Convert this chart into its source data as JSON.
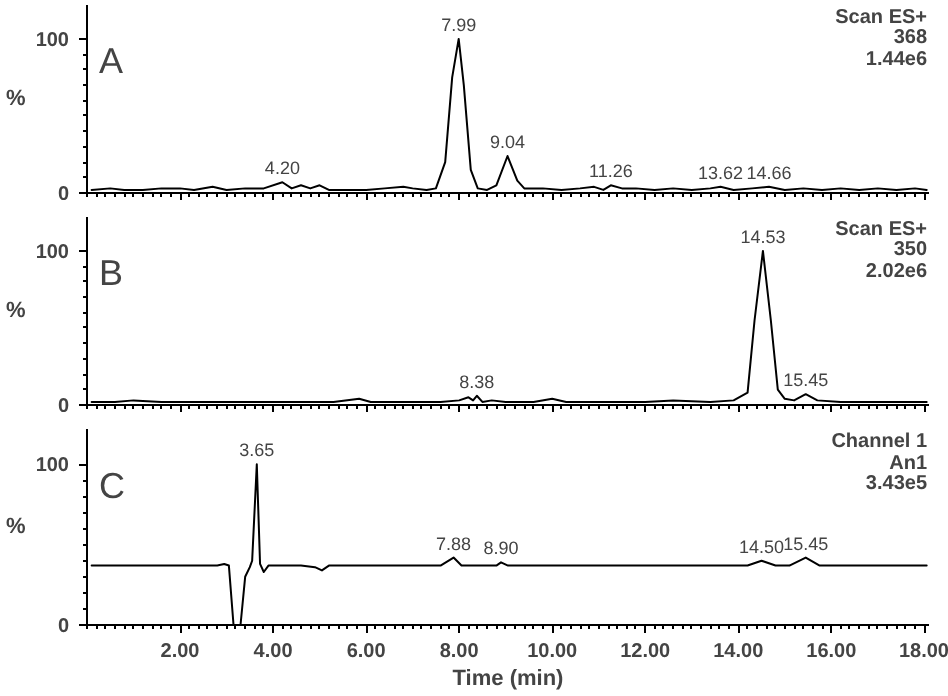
{
  "chart_data": [
    {
      "type": "line",
      "title": "A",
      "ylabel": "%",
      "xlim": [
        0,
        18.1
      ],
      "ylim": [
        0,
        122
      ],
      "yticks": [
        0,
        100
      ],
      "tick_labels": "y",
      "xticks": [
        {
          "value": 2,
          "label": null
        },
        {
          "value": 4,
          "label": null
        },
        {
          "value": 6,
          "label": null
        },
        {
          "value": 8,
          "label": null
        },
        {
          "value": 10,
          "label": null
        },
        {
          "value": 12,
          "label": null
        },
        {
          "value": 14,
          "label": null
        },
        {
          "value": 16,
          "label": null
        },
        {
          "value": 18,
          "label": null
        }
      ],
      "series": [
        {
          "color": "#000000",
          "x": [
            0.1,
            0.5,
            0.8,
            1.2,
            1.6,
            2.0,
            2.3,
            2.7,
            3.0,
            3.4,
            3.8,
            4.2,
            4.4,
            4.6,
            4.8,
            5.0,
            5.2,
            5.6,
            6.0,
            6.4,
            6.8,
            7.0,
            7.3,
            7.5,
            7.7,
            7.85,
            7.99,
            8.1,
            8.25,
            8.4,
            8.6,
            8.8,
            9.04,
            9.25,
            9.4,
            9.8,
            10.2,
            10.6,
            10.9,
            11.1,
            11.26,
            11.5,
            11.8,
            12.2,
            12.6,
            13.0,
            13.4,
            13.62,
            13.9,
            14.3,
            14.66,
            15.0,
            15.4,
            15.8,
            16.2,
            16.6,
            17.0,
            17.4,
            17.8,
            18.05
          ],
          "values": [
            2,
            3,
            2,
            2,
            3,
            3,
            2,
            4,
            2,
            3,
            3,
            7,
            3,
            5,
            3,
            5,
            2,
            2,
            2,
            3,
            4,
            3,
            2,
            3,
            20,
            75,
            100,
            70,
            15,
            3,
            2,
            5,
            24,
            8,
            3,
            3,
            2,
            3,
            4,
            2,
            5,
            3,
            3,
            2,
            3,
            2,
            3,
            4,
            2,
            3,
            4,
            2,
            3,
            2,
            3,
            2,
            3,
            2,
            3,
            2
          ]
        }
      ],
      "annotations": [
        {
          "text": "4.20",
          "x": 4.2,
          "y": 7
        },
        {
          "text": "7.99",
          "x": 7.99,
          "y": 100
        },
        {
          "text": "9.04",
          "x": 9.04,
          "y": 24
        },
        {
          "text": "11.26",
          "x": 11.26,
          "y": 5
        },
        {
          "text": "13.62",
          "x": 13.62,
          "y": 4
        },
        {
          "text": "14.66",
          "x": 14.66,
          "y": 4
        },
        "Scan ES+",
        "368",
        "1.44e6"
      ]
    },
    {
      "type": "line",
      "title": "B",
      "ylabel": "%",
      "xlim": [
        0,
        18.1
      ],
      "ylim": [
        0,
        122
      ],
      "yticks": [
        0,
        100
      ],
      "tick_labels": "y",
      "xticks": [
        {
          "value": 2,
          "label": null
        },
        {
          "value": 4,
          "label": null
        },
        {
          "value": 6,
          "label": null
        },
        {
          "value": 8,
          "label": null
        },
        {
          "value": 10,
          "label": null
        },
        {
          "value": 12,
          "label": null
        },
        {
          "value": 14,
          "label": null
        },
        {
          "value": 16,
          "label": null
        },
        {
          "value": 18,
          "label": null
        }
      ],
      "series": [
        {
          "color": "#000000",
          "x": [
            0.1,
            0.6,
            1.0,
            1.6,
            2.4,
            3.0,
            3.6,
            4.2,
            4.8,
            5.3,
            5.85,
            6.1,
            6.8,
            7.6,
            8.0,
            8.2,
            8.3,
            8.38,
            8.5,
            8.7,
            9.0,
            9.6,
            10.0,
            10.3,
            11.0,
            12.0,
            12.6,
            13.4,
            13.9,
            14.2,
            14.35,
            14.53,
            14.7,
            14.85,
            15.0,
            15.2,
            15.45,
            15.7,
            16.2,
            16.8,
            17.4,
            18.05
          ],
          "values": [
            2,
            2,
            3,
            2,
            2,
            2,
            2,
            2,
            2,
            2,
            4,
            2,
            2,
            2,
            3,
            5,
            3,
            6,
            2,
            3,
            2,
            2,
            4,
            2,
            2,
            2,
            3,
            2,
            3,
            8,
            55,
            100,
            55,
            10,
            4,
            3,
            7,
            3,
            2,
            2,
            2,
            2
          ]
        }
      ],
      "annotations": [
        {
          "text": "8.38",
          "x": 8.38,
          "y": 6
        },
        {
          "text": "14.53",
          "x": 14.53,
          "y": 100
        },
        {
          "text": "15.45",
          "x": 15.45,
          "y": 7
        },
        "Scan ES+",
        "350",
        "2.02e6"
      ]
    },
    {
      "type": "line",
      "title": "C",
      "ylabel": "%",
      "xlabel": "Time (min)",
      "xlim": [
        0,
        18.1
      ],
      "ylim": [
        0,
        122
      ],
      "yticks": [
        0,
        100
      ],
      "xticks": [
        {
          "value": 2,
          "label": "2.00"
        },
        {
          "value": 4,
          "label": "4.00"
        },
        {
          "value": 6,
          "label": "6.00"
        },
        {
          "value": 8,
          "label": "8.00"
        },
        {
          "value": 10,
          "label": "10.00"
        },
        {
          "value": 12,
          "label": "12.00"
        },
        {
          "value": 14,
          "label": "14.00"
        },
        {
          "value": 16,
          "label": "16.00"
        },
        {
          "value": 18,
          "label": "18.00"
        }
      ],
      "series": [
        {
          "color": "#000000",
          "x": [
            0.1,
            2.8,
            2.95,
            3.05,
            3.15,
            3.3,
            3.4,
            3.5,
            3.55,
            3.65,
            3.72,
            3.8,
            3.9,
            4.6,
            4.9,
            5.05,
            5.2,
            7.6,
            7.88,
            8.05,
            8.8,
            8.9,
            9.05,
            14.2,
            14.5,
            14.8,
            15.1,
            15.45,
            15.75,
            18.05
          ],
          "values": [
            37,
            37,
            38,
            37,
            0,
            0,
            30,
            36,
            40,
            100,
            38,
            33,
            37,
            37,
            36,
            34,
            37,
            37,
            42,
            37,
            37,
            39,
            37,
            37,
            40,
            37,
            37,
            42,
            37,
            37
          ]
        }
      ],
      "annotations": [
        {
          "text": "3.65",
          "x": 3.65,
          "y": 100
        },
        {
          "text": "7.88",
          "x": 7.88,
          "y": 42
        },
        {
          "text": "8.90",
          "x": 8.9,
          "y": 39
        },
        {
          "text": "14.50",
          "x": 14.5,
          "y": 40
        },
        {
          "text": "15.45",
          "x": 15.45,
          "y": 42
        },
        "Channel 1",
        "An1",
        "3.43e5"
      ]
    }
  ]
}
